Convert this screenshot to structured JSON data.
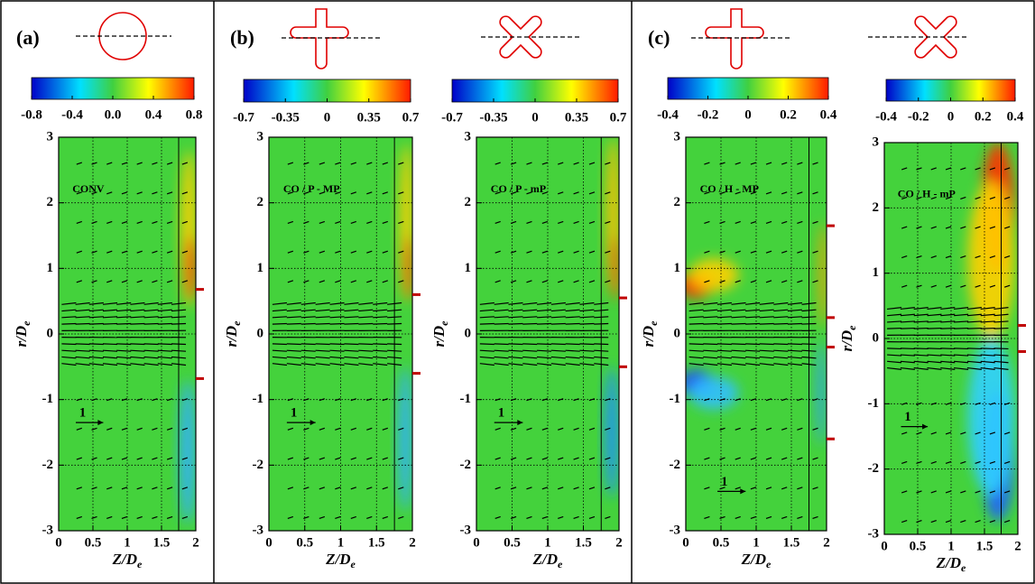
{
  "panel_labels": [
    "(a)",
    "(b)",
    "(c)"
  ],
  "chart_data": [
    {
      "type": "contour",
      "annotation": "CONV",
      "xlabel": [
        "Z/D",
        "e"
      ],
      "ylabel": [
        "r/D",
        "e"
      ],
      "xlim": [
        0,
        2
      ],
      "ylim": [
        -3,
        3
      ],
      "xticks": [
        0,
        0.5,
        1,
        1.5,
        2
      ],
      "yticks": [
        -3,
        -2,
        -1,
        0,
        1,
        2,
        3
      ],
      "grid": true,
      "colorbar": {
        "lim": [
          -0.8,
          0.8
        ],
        "ticks": [
          -0.8,
          -0.4,
          {
            "value": 0,
            "label": "0.0"
          },
          0.4,
          0.8
        ]
      },
      "reference_vector": "1",
      "edge_marks": [
        0.68,
        -0.68
      ]
    },
    {
      "type": "contour",
      "annotation": "CO / P - MP",
      "xlabel": [
        "Z/D",
        "e"
      ],
      "ylabel": [
        "r/D",
        "e"
      ],
      "xlim": [
        0,
        2
      ],
      "ylim": [
        -3,
        3
      ],
      "xticks": [
        0,
        0.5,
        1,
        1.5,
        2
      ],
      "yticks": [
        -3,
        -2,
        -1,
        0,
        1,
        2,
        3
      ],
      "grid": true,
      "colorbar": {
        "lim": [
          -0.7,
          0.7
        ],
        "ticks": [
          -0.7,
          -0.35,
          0,
          0.35,
          0.7
        ]
      },
      "reference_vector": "1",
      "edge_marks": [
        0.6,
        -0.6
      ]
    },
    {
      "type": "contour",
      "annotation": "CO / P - mP",
      "xlabel": [
        "Z/D",
        "e"
      ],
      "ylabel": [
        "r/D",
        "e"
      ],
      "xlim": [
        0,
        2
      ],
      "ylim": [
        -3,
        3
      ],
      "xticks": [
        0,
        0.5,
        1,
        1.5,
        2
      ],
      "yticks": [
        -3,
        -2,
        -1,
        0,
        1,
        2,
        3
      ],
      "grid": true,
      "colorbar": {
        "lim": [
          -0.7,
          0.7
        ],
        "ticks": [
          -0.7,
          -0.35,
          0,
          0.35,
          0.7
        ]
      },
      "reference_vector": "1",
      "edge_marks": [
        0.55,
        -0.5
      ]
    },
    {
      "type": "contour",
      "annotation": "CO / H - MP",
      "xlabel": [
        "Z/D",
        "e"
      ],
      "ylabel": [
        "r/D",
        "e"
      ],
      "xlim": [
        0,
        2
      ],
      "ylim": [
        -3,
        3
      ],
      "xticks": [
        0,
        0.5,
        1,
        1.5,
        2
      ],
      "yticks": [
        -3,
        -2,
        -1,
        0,
        1,
        2,
        3
      ],
      "grid": true,
      "colorbar": {
        "lim": [
          -0.4,
          0.4
        ],
        "ticks": [
          -0.4,
          -0.2,
          0,
          0.2,
          0.4
        ]
      },
      "reference_vector": "1",
      "edge_marks": [
        1.65,
        0.25,
        -0.2,
        -1.6
      ]
    },
    {
      "type": "contour",
      "annotation": "CO / H - mP",
      "xlabel": [
        "Z/D",
        "e"
      ],
      "ylabel": [
        "r/D",
        "e"
      ],
      "xlim": [
        0,
        2
      ],
      "ylim": [
        -3,
        3
      ],
      "xticks": [
        0,
        0.5,
        1,
        1.5,
        2
      ],
      "yticks": [
        -3,
        -2,
        -1,
        0,
        1,
        2,
        3
      ],
      "grid": true,
      "colorbar": {
        "lim": [
          -0.4,
          0.4
        ],
        "ticks": [
          -0.4,
          -0.2,
          0,
          0.2,
          0.4
        ]
      },
      "reference_vector": "1",
      "edge_marks": [
        0.2,
        -0.2
      ]
    }
  ]
}
